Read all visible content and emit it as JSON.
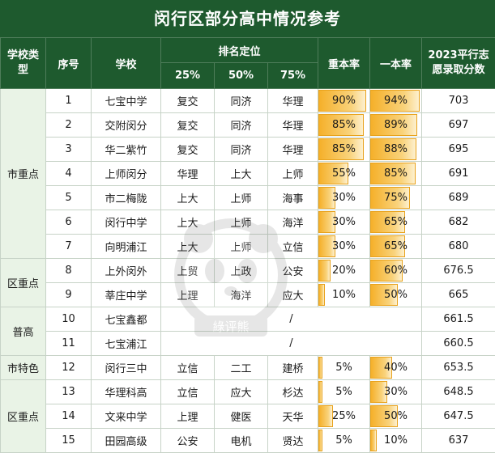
{
  "title": "闵行区部分高中情况参考",
  "headers": {
    "school_type": "学校类型",
    "seq": "序号",
    "school": "学校",
    "rank_group": "排名定位",
    "rank_25": "25%",
    "rank_50": "50%",
    "rank_75": "75%",
    "zhongben": "重本率",
    "yiben": "一本率",
    "score": "2023平行志愿录取分数"
  },
  "groups": [
    {
      "label": "市重点",
      "start": 0,
      "span": 7
    },
    {
      "label": "区重点",
      "start": 7,
      "span": 2
    },
    {
      "label": "普高",
      "start": 9,
      "span": 2
    },
    {
      "label": "市特色",
      "start": 11,
      "span": 1
    },
    {
      "label": "区重点",
      "start": 12,
      "span": 3
    }
  ],
  "rows": [
    {
      "seq": "1",
      "school": "七宝中学",
      "r25": "复交",
      "r50": "同济",
      "r75": "华理",
      "zb": "90%",
      "zb_val": 0.9,
      "yb": "94%",
      "yb_val": 0.94,
      "score": "703"
    },
    {
      "seq": "2",
      "school": "交附闵分",
      "r25": "复交",
      "r50": "同济",
      "r75": "华理",
      "zb": "85%",
      "zb_val": 0.85,
      "yb": "89%",
      "yb_val": 0.89,
      "score": "697"
    },
    {
      "seq": "3",
      "school": "华二紫竹",
      "r25": "复交",
      "r50": "同济",
      "r75": "华理",
      "zb": "85%",
      "zb_val": 0.85,
      "yb": "88%",
      "yb_val": 0.88,
      "score": "695"
    },
    {
      "seq": "4",
      "school": "上师闵分",
      "r25": "华理",
      "r50": "上大",
      "r75": "上师",
      "zb": "55%",
      "zb_val": 0.55,
      "yb": "85%",
      "yb_val": 0.85,
      "score": "691"
    },
    {
      "seq": "5",
      "school": "市二梅陇",
      "r25": "上大",
      "r50": "上师",
      "r75": "海事",
      "zb": "30%",
      "zb_val": 0.3,
      "yb": "75%",
      "yb_val": 0.75,
      "score": "689"
    },
    {
      "seq": "6",
      "school": "闵行中学",
      "r25": "上大",
      "r50": "上师",
      "r75": "海洋",
      "zb": "30%",
      "zb_val": 0.3,
      "yb": "65%",
      "yb_val": 0.65,
      "score": "682"
    },
    {
      "seq": "7",
      "school": "向明浦江",
      "r25": "上大",
      "r50": "上师",
      "r75": "立信",
      "zb": "30%",
      "zb_val": 0.3,
      "yb": "65%",
      "yb_val": 0.65,
      "score": "680"
    },
    {
      "seq": "8",
      "school": "上外闵外",
      "r25": "上贸",
      "r50": "上政",
      "r75": "公安",
      "zb": "20%",
      "zb_val": 0.2,
      "yb": "60%",
      "yb_val": 0.6,
      "score": "676.5"
    },
    {
      "seq": "9",
      "school": "莘庄中学",
      "r25": "上理",
      "r50": "海洋",
      "r75": "应大",
      "zb": "10%",
      "zb_val": 0.1,
      "yb": "50%",
      "yb_val": 0.5,
      "score": "665"
    },
    {
      "seq": "10",
      "school": "七宝鑫都",
      "slash": "/",
      "score": "661.5"
    },
    {
      "seq": "11",
      "school": "七宝浦江",
      "slash": "/",
      "score": "660.5"
    },
    {
      "seq": "12",
      "school": "闵行三中",
      "r25": "立信",
      "r50": "二工",
      "r75": "建桥",
      "zb": "5%",
      "zb_val": 0.05,
      "yb": "40%",
      "yb_val": 0.4,
      "score": "653.5"
    },
    {
      "seq": "13",
      "school": "华理科高",
      "r25": "立信",
      "r50": "应大",
      "r75": "杉达",
      "zb": "5%",
      "zb_val": 0.05,
      "yb": "30%",
      "yb_val": 0.3,
      "score": "648.5"
    },
    {
      "seq": "14",
      "school": "文来中学",
      "r25": "上理",
      "r50": "健医",
      "r75": "天华",
      "zb": "25%",
      "zb_val": 0.25,
      "yb": "50%",
      "yb_val": 0.5,
      "score": "647.5"
    },
    {
      "seq": "15",
      "school": "田园高级",
      "r25": "公安",
      "r50": "电机",
      "r75": "贤达",
      "zb": "5%",
      "zb_val": 0.05,
      "yb": "10%",
      "yb_val": 0.1,
      "score": "637"
    }
  ],
  "watermark_text": "綠评熊",
  "colors": {
    "header_bg": "#1e5a2e",
    "group_bg": "#e9f3e6",
    "bar": "#f5b02a"
  }
}
